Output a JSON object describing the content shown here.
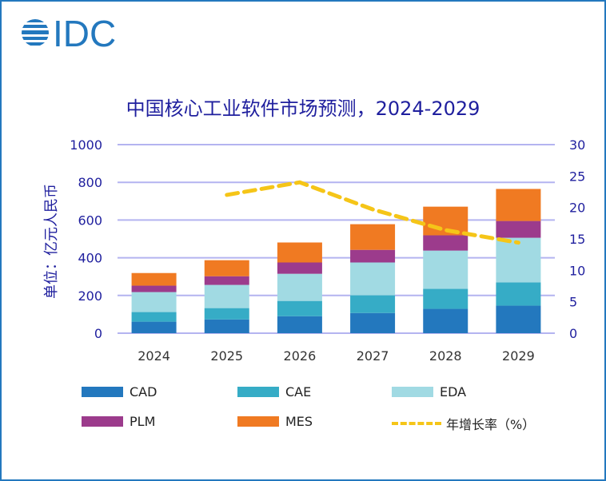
{
  "logo_text": "IDC",
  "chart_data": {
    "type": "bar",
    "stacked": true,
    "title": "中国核心工业软件市场预测，2024-2029",
    "ylabel": "单位：亿元人民币",
    "categories": [
      "2024",
      "2025",
      "2026",
      "2027",
      "2028",
      "2029"
    ],
    "ylim": [
      0,
      1000
    ],
    "yticks": [
      "0",
      "200",
      "400",
      "600",
      "800",
      "1000"
    ],
    "y2lim": [
      0,
      30
    ],
    "y2ticks": [
      "0",
      "5",
      "10",
      "15",
      "20",
      "25",
      "30"
    ],
    "grid": true,
    "legend_position": "bottom",
    "series": [
      {
        "name": "CAD",
        "color": "#2378BE",
        "values": [
          61,
          73,
          90,
          107,
          129,
          146
        ]
      },
      {
        "name": "CAE",
        "color": "#36ACC6",
        "values": [
          51,
          60,
          81,
          94,
          106,
          123
        ]
      },
      {
        "name": "EDA",
        "color": "#A1DAE3",
        "values": [
          106,
          123,
          144,
          174,
          203,
          237
        ]
      },
      {
        "name": "PLM",
        "color": "#9C3B8C",
        "values": [
          34,
          46,
          60,
          67,
          81,
          89
        ]
      },
      {
        "name": "MES",
        "color": "#F07A22",
        "values": [
          67,
          85,
          106,
          136,
          152,
          170
        ]
      }
    ],
    "line_series": {
      "name": "年增长率（%）",
      "color": "#F5C518",
      "axis": "right",
      "values": [
        null,
        22.0,
        24.0,
        19.7,
        16.4,
        14.4
      ]
    }
  }
}
